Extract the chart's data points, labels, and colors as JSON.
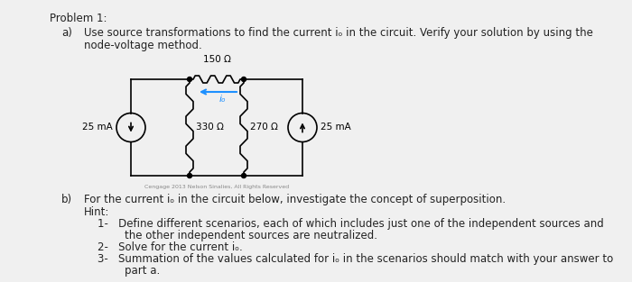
{
  "bg_color": "#f0f0f0",
  "title": "Problem 1:",
  "part_a_label": "a)",
  "part_a_text_line1": "Use source transformations to find the current iₒ in the circuit. Verify your solution by using the",
  "part_a_text_line2": "node-voltage method.",
  "part_b_label": "b)",
  "part_b_text": "For the current iₒ in the circuit below, investigate the concept of superposition.",
  "hint_label": "Hint:",
  "hint1": "1-   Define different scenarios, each of which includes just one of the independent sources and",
  "hint1b": "        the other independent sources are neutralized.",
  "hint2": "2-   Solve for the current iₒ.",
  "hint3": "3-   Summation of the values calculated for iₒ in the scenarios should match with your answer to",
  "hint3b": "        part a.",
  "resistor_top_label": "150 Ω",
  "resistor_left_label": "330 Ω",
  "resistor_right_label": "270 Ω",
  "source_left_label": "25 mA",
  "source_right_label": "25 mA",
  "current_label": "iₒ",
  "circuit_color": "#000000",
  "arrow_color": "#1e90ff",
  "wire_color": "#000000",
  "text_color": "#222222",
  "font_size_main": 8.5,
  "font_size_circuit": 7.5,
  "watermark": "Cengage 2013 Nelson Sinalies, All Rights Reserved"
}
